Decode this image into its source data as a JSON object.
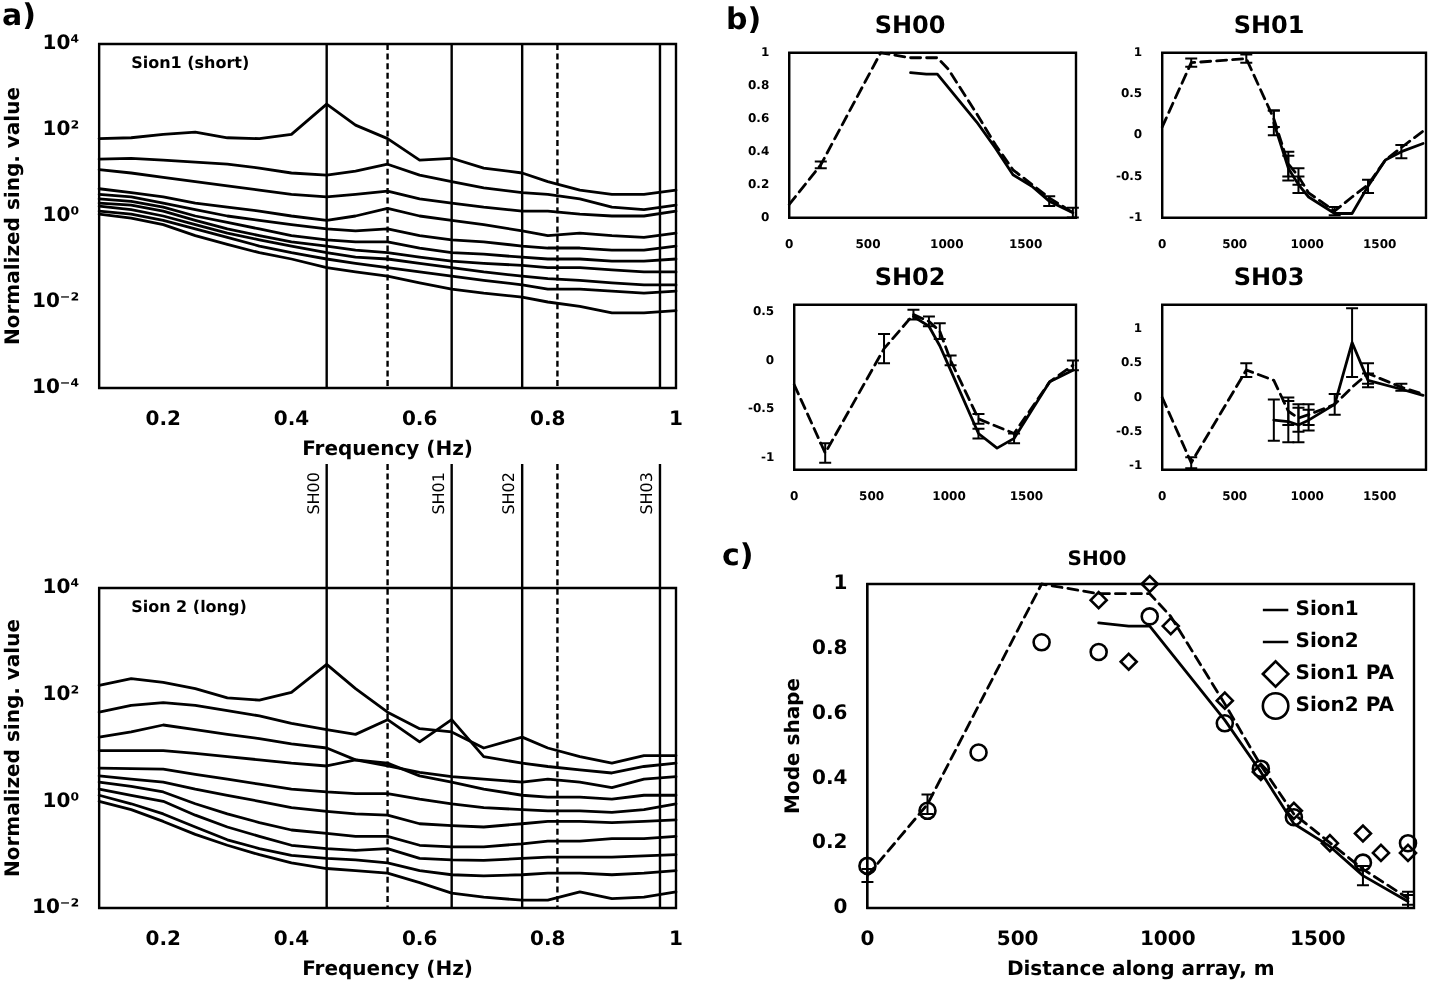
{
  "chart_data": [
    {
      "type": "line",
      "annotations": [
        "a)",
        "Sion1 (short)"
      ],
      "xlabel": "Frequency (Hz)",
      "ylabel": "Normalized sing. value",
      "log": true,
      "grid": false,
      "legend": false,
      "x": [
        0.1,
        0.15,
        0.2,
        0.25,
        0.3,
        0.35,
        0.4,
        0.455,
        0.5,
        0.55,
        0.6,
        0.65,
        0.7,
        0.76,
        0.8,
        0.85,
        0.9,
        0.95,
        1
      ],
      "xlim": [
        0.1,
        1
      ],
      "xticks": [
        0.2,
        0.4,
        0.6,
        0.8,
        1
      ],
      "ylim": [
        0.0001,
        10000
      ],
      "yticks": [
        {
          "value": 0.0001,
          "label": "10⁻⁴"
        },
        {
          "value": 0.01,
          "label": "10⁻²"
        },
        {
          "value": 1,
          "label": "10⁰"
        },
        {
          "value": 100,
          "label": "10²"
        },
        {
          "value": 10000,
          "label": "10⁴"
        }
      ],
      "ref_lines": [
        {
          "axis": "x",
          "value": 0.455,
          "line_style": "solid"
        },
        {
          "axis": "x",
          "value": 0.55,
          "line_style": "dashed"
        },
        {
          "axis": "x",
          "value": 0.65,
          "line_style": "solid"
        },
        {
          "axis": "x",
          "value": 0.76,
          "line_style": "solid"
        },
        {
          "axis": "x",
          "value": 0.815,
          "line_style": "dashed"
        },
        {
          "axis": "x",
          "value": 0.975,
          "line_style": "solid"
        }
      ],
      "series": [
        {
          "color": "#000000",
          "values": [
            63,
            66,
            79,
            89,
            66,
            63,
            79,
            400,
            130,
            63,
            20,
            22,
            13,
            10,
            6.3,
            4,
            3.2,
            3.2,
            4
          ]
        },
        {
          "color": "#000000",
          "values": [
            21,
            22,
            20,
            18,
            16,
            13,
            10,
            8.9,
            11,
            16,
            8.9,
            6.3,
            4.5,
            3.5,
            3.2,
            2.5,
            1.6,
            1.4,
            1.8
          ]
        },
        {
          "color": "#000000",
          "values": [
            12,
            10,
            7.9,
            6.3,
            5,
            4,
            3.2,
            2.8,
            3.2,
            3.8,
            2.5,
            2,
            1.6,
            1.3,
            1.3,
            1.1,
            1,
            1,
            1.3
          ]
        },
        {
          "color": "#000000",
          "values": [
            4.3,
            3.5,
            2.8,
            2,
            1.6,
            1.3,
            1,
            0.79,
            1,
            1.5,
            1,
            0.79,
            0.63,
            0.45,
            0.35,
            0.4,
            0.35,
            0.32,
            0.4
          ]
        },
        {
          "color": "#000000",
          "values": [
            3.2,
            2.8,
            2,
            1.4,
            1,
            0.79,
            0.63,
            0.5,
            0.45,
            0.5,
            0.35,
            0.28,
            0.25,
            0.2,
            0.18,
            0.18,
            0.16,
            0.16,
            0.2
          ]
        },
        {
          "color": "#000000",
          "values": [
            2.5,
            2.2,
            1.6,
            1,
            0.71,
            0.5,
            0.35,
            0.28,
            0.25,
            0.25,
            0.18,
            0.14,
            0.13,
            0.11,
            0.1,
            0.1,
            0.089,
            0.089,
            0.1
          ]
        },
        {
          "color": "#000000",
          "values": [
            2,
            1.8,
            1.3,
            0.79,
            0.5,
            0.35,
            0.25,
            0.2,
            0.16,
            0.14,
            0.11,
            0.089,
            0.079,
            0.071,
            0.063,
            0.063,
            0.056,
            0.05,
            0.05
          ]
        },
        {
          "color": "#000000",
          "values": [
            1.7,
            1.4,
            1,
            0.63,
            0.4,
            0.28,
            0.2,
            0.14,
            0.11,
            0.1,
            0.079,
            0.063,
            0.05,
            0.04,
            0.035,
            0.032,
            0.028,
            0.025,
            0.025
          ]
        },
        {
          "color": "#000000",
          "values": [
            1.3,
            1.1,
            0.79,
            0.5,
            0.32,
            0.2,
            0.14,
            0.1,
            0.079,
            0.063,
            0.05,
            0.04,
            0.032,
            0.025,
            0.02,
            0.02,
            0.018,
            0.016,
            0.018
          ]
        },
        {
          "color": "#000000",
          "values": [
            1.1,
            0.89,
            0.63,
            0.35,
            0.22,
            0.14,
            0.1,
            0.063,
            0.05,
            0.04,
            0.028,
            0.02,
            0.016,
            0.013,
            0.01,
            0.0079,
            0.0056,
            0.0056,
            0.0063
          ]
        }
      ]
    },
    {
      "type": "line",
      "annotations": [
        "Sion 2 (long)"
      ],
      "xlabel": "Frequency (Hz)",
      "ylabel": "Normalized sing. value",
      "log": true,
      "grid": false,
      "legend": false,
      "x": [
        0.1,
        0.15,
        0.2,
        0.25,
        0.3,
        0.35,
        0.4,
        0.455,
        0.5,
        0.55,
        0.6,
        0.65,
        0.7,
        0.76,
        0.8,
        0.85,
        0.9,
        0.95,
        1
      ],
      "xlim": [
        0.1,
        1
      ],
      "xticks": [
        0.2,
        0.4,
        0.6,
        0.8,
        1
      ],
      "ylim": [
        0.01,
        10000
      ],
      "yticks": [
        {
          "value": 0.01,
          "label": "10⁻²"
        },
        {
          "value": 1,
          "label": "10⁰"
        },
        {
          "value": 100,
          "label": "10²"
        },
        {
          "value": 10000,
          "label": "10⁴"
        }
      ],
      "ref_lines": [
        {
          "axis": "x",
          "value": 0.455,
          "label": "SH00",
          "line_style": "solid"
        },
        {
          "axis": "x",
          "value": 0.55,
          "line_style": "dashed"
        },
        {
          "axis": "x",
          "value": 0.65,
          "label": "SH01",
          "line_style": "solid"
        },
        {
          "axis": "x",
          "value": 0.76,
          "label": "SH02",
          "line_style": "solid"
        },
        {
          "axis": "x",
          "value": 0.815,
          "line_style": "dashed"
        },
        {
          "axis": "x",
          "value": 0.975,
          "label": "SH03",
          "line_style": "solid"
        }
      ],
      "series": [
        {
          "color": "#000000",
          "values": [
            150,
            200,
            170,
            130,
            87,
            79,
            110,
            370,
            130,
            47,
            23,
            20,
            10,
            16,
            10,
            6.9,
            5.2,
            7.2,
            7.2
          ]
        },
        {
          "color": "#000000",
          "values": [
            47,
            63,
            71,
            63,
            50,
            40,
            29,
            22,
            18,
            34,
            13,
            34,
            6.9,
            5.2,
            4.5,
            3.9,
            3.4,
            4.5,
            5.2
          ]
        },
        {
          "color": "#000000",
          "values": [
            16,
            20,
            27,
            22,
            18,
            15,
            12,
            10,
            6,
            4.6,
            3.5,
            2.9,
            2.6,
            2.3,
            2.6,
            2.3,
            1.8,
            2.6,
            2.9
          ]
        },
        {
          "color": "#000000",
          "values": [
            8.9,
            8.9,
            8.9,
            7.9,
            6.9,
            6,
            5.2,
            4.6,
            6,
            5.2,
            3,
            2.3,
            1.7,
            1.3,
            1.2,
            1.2,
            1.1,
            1.3,
            1.3
          ]
        },
        {
          "color": "#000000",
          "values": [
            4.2,
            4.1,
            4,
            3.2,
            2.6,
            2.1,
            1.7,
            1.5,
            1.4,
            1.4,
            1.1,
            0.9,
            0.76,
            0.7,
            0.66,
            0.66,
            0.62,
            0.7,
            0.9
          ]
        },
        {
          "color": "#000000",
          "values": [
            3,
            2.6,
            2.3,
            1.7,
            1.3,
            1,
            0.76,
            0.65,
            0.58,
            0.55,
            0.38,
            0.35,
            0.33,
            0.38,
            0.42,
            0.42,
            0.4,
            0.42,
            0.45
          ]
        },
        {
          "color": "#000000",
          "values": [
            2.3,
            1.9,
            1.5,
            0.9,
            0.58,
            0.4,
            0.29,
            0.25,
            0.22,
            0.22,
            0.15,
            0.14,
            0.14,
            0.16,
            0.18,
            0.18,
            0.2,
            0.2,
            0.22
          ]
        },
        {
          "color": "#000000",
          "values": [
            1.7,
            1.3,
            1,
            0.55,
            0.33,
            0.22,
            0.15,
            0.13,
            0.12,
            0.13,
            0.085,
            0.08,
            0.078,
            0.085,
            0.09,
            0.09,
            0.09,
            0.095,
            0.1
          ]
        },
        {
          "color": "#000000",
          "values": [
            1.3,
            0.9,
            0.58,
            0.33,
            0.19,
            0.13,
            0.097,
            0.085,
            0.08,
            0.07,
            0.05,
            0.042,
            0.04,
            0.042,
            0.045,
            0.045,
            0.042,
            0.045,
            0.05
          ]
        },
        {
          "color": "#000000",
          "values": [
            1,
            0.7,
            0.42,
            0.24,
            0.15,
            0.1,
            0.07,
            0.055,
            0.05,
            0.045,
            0.03,
            0.019,
            0.016,
            0.014,
            0.014,
            0.02,
            0.015,
            0.016,
            0.02
          ]
        }
      ]
    },
    {
      "type": "line",
      "title": "SH00",
      "annotations": [
        "b)"
      ],
      "grid": false,
      "legend": false,
      "xlim": [
        0,
        1820
      ],
      "xticks": [
        0,
        500,
        1000,
        1500
      ],
      "ylim": [
        0,
        1
      ],
      "yticks": [
        0,
        0.2,
        0.4,
        0.6,
        0.8,
        1
      ],
      "series": [
        {
          "color": "#000000",
          "line_style": "solid",
          "x": [
            770,
            870,
            940,
            1190,
            1310,
            1420,
            1540,
            1650,
            1800
          ],
          "values": [
            0.88,
            0.87,
            0.87,
            0.58,
            0.42,
            0.26,
            0.19,
            0.1,
            0.03
          ],
          "errors": [
            null,
            null,
            null,
            null,
            null,
            null,
            null,
            0.03,
            0.03
          ]
        },
        {
          "color": "#000000",
          "line_style": "dashed",
          "x": [
            0,
            200,
            580,
            770,
            940,
            1010,
            1190,
            1310,
            1420,
            1650,
            1800
          ],
          "values": [
            0.08,
            0.32,
            1,
            0.97,
            0.97,
            0.9,
            0.63,
            0.44,
            0.29,
            0.12,
            0.03
          ],
          "errors": [
            null,
            0.02,
            null,
            null,
            null,
            null,
            null,
            null,
            null,
            null,
            null
          ]
        }
      ]
    },
    {
      "type": "line",
      "title": "SH01",
      "grid": false,
      "legend": false,
      "xlim": [
        0,
        1820
      ],
      "xticks": [
        0,
        500,
        1000,
        1500
      ],
      "ylim": [
        -1,
        1
      ],
      "yticks": [
        -1,
        -0.5,
        0,
        0.5,
        1
      ],
      "series": [
        {
          "color": "#000000",
          "line_style": "solid",
          "x": [
            770,
            870,
            940,
            1010,
            1190,
            1310,
            1420,
            1540,
            1650,
            1800
          ],
          "values": [
            0.15,
            -0.4,
            -0.6,
            -0.75,
            -0.95,
            -0.95,
            -0.62,
            -0.3,
            -0.2,
            -0.1
          ],
          "errors": [
            0.15,
            0.15,
            0.1,
            null,
            null,
            null,
            0.08,
            null,
            0.08,
            null
          ]
        },
        {
          "color": "#000000",
          "line_style": "dashed",
          "x": [
            0,
            200,
            580,
            770,
            870,
            940,
            1010,
            1190,
            1310,
            1420,
            1540,
            1650,
            1800
          ],
          "values": [
            0.1,
            0.88,
            0.93,
            0.2,
            -0.35,
            -0.5,
            -0.7,
            -0.92,
            -0.75,
            -0.6,
            -0.3,
            -0.15,
            0.05
          ],
          "errors": [
            null,
            0.05,
            0.05,
            0.1,
            0.15,
            0.1,
            null,
            0.05,
            null,
            null,
            null,
            null,
            null
          ]
        }
      ]
    },
    {
      "type": "line",
      "title": "SH02",
      "grid": false,
      "legend": false,
      "xlim": [
        0,
        1820
      ],
      "xticks": [
        0,
        500,
        1000,
        1500
      ],
      "ylim": [
        -1.12,
        0.57
      ],
      "yticks": [
        -1,
        -0.5,
        0,
        0.5
      ],
      "series": [
        {
          "color": "#000000",
          "line_style": "solid",
          "x": [
            770,
            870,
            940,
            1010,
            1190,
            1310,
            1420,
            1650,
            1800
          ],
          "values": [
            0.45,
            0.35,
            0.15,
            -0.1,
            -0.75,
            -0.9,
            -0.8,
            -0.22,
            -0.1
          ],
          "errors": [
            null,
            null,
            null,
            null,
            0.05,
            null,
            0.05,
            null,
            null
          ]
        },
        {
          "color": "#000000",
          "line_style": "dashed",
          "x": [
            0,
            200,
            580,
            770,
            870,
            940,
            1010,
            1190,
            1420,
            1650,
            1800
          ],
          "values": [
            -0.25,
            -0.95,
            0.12,
            0.47,
            0.4,
            0.3,
            0.0,
            -0.6,
            -0.75,
            -0.22,
            -0.05
          ],
          "errors": [
            null,
            0.1,
            0.15,
            0.05,
            0.05,
            0.08,
            0.05,
            0.05,
            null,
            null,
            0.05
          ]
        }
      ]
    },
    {
      "type": "line",
      "title": "SH03",
      "grid": false,
      "legend": false,
      "xlim": [
        0,
        1820
      ],
      "xticks": [
        0,
        500,
        1000,
        1500
      ],
      "ylim": [
        -1.05,
        1.35
      ],
      "yticks": [
        -1,
        -0.5,
        0,
        0.5,
        1
      ],
      "series": [
        {
          "color": "#000000",
          "line_style": "solid",
          "x": [
            770,
            870,
            940,
            1010,
            1190,
            1310,
            1420,
            1650,
            1800
          ],
          "values": [
            -0.33,
            -0.35,
            -0.4,
            -0.33,
            -0.1,
            0.8,
            0.25,
            0.12,
            0.03
          ],
          "errors": [
            0.3,
            0.3,
            0.25,
            0.15,
            0.15,
            0.5,
            0.1,
            null,
            null
          ]
        },
        {
          "color": "#000000",
          "line_style": "dashed",
          "x": [
            0,
            200,
            580,
            770,
            870,
            940,
            1010,
            1190,
            1310,
            1420,
            1650,
            1800
          ],
          "values": [
            0,
            -0.95,
            0.4,
            0.25,
            -0.2,
            -0.3,
            -0.25,
            -0.1,
            0.15,
            0.35,
            0.15,
            0.05
          ],
          "errors": [
            null,
            0.08,
            0.1,
            null,
            0.2,
            0.2,
            0.15,
            null,
            null,
            0.15,
            0.05,
            null
          ]
        }
      ]
    },
    {
      "type": "line",
      "title": "SH00",
      "annotations": [
        "c)"
      ],
      "xlabel": "Distance along array, m",
      "ylabel": "Mode shape",
      "grid": false,
      "legend": "top right",
      "xlim": [
        0,
        1820
      ],
      "xticks": [
        0,
        500,
        1000,
        1500
      ],
      "ylim": [
        0,
        1
      ],
      "yticks": [
        0,
        0.2,
        0.4,
        0.6,
        0.8,
        1
      ],
      "series": [
        {
          "name": "Sion1",
          "color": "#000000",
          "line_style": "solid",
          "x": [
            770,
            870,
            940,
            1190,
            1310,
            1420,
            1540,
            1650,
            1800
          ],
          "values": [
            0.88,
            0.87,
            0.87,
            0.58,
            0.42,
            0.26,
            0.19,
            0.1,
            0.02
          ],
          "errors": [
            null,
            null,
            null,
            null,
            null,
            null,
            null,
            0.03,
            0.02
          ]
        },
        {
          "name": "Sion2",
          "color": "#000000",
          "line_style": "dashed",
          "x": [
            0,
            200,
            580,
            770,
            940,
            1010,
            1190,
            1310,
            1420,
            1650,
            1800
          ],
          "values": [
            0.1,
            0.32,
            1,
            0.97,
            0.97,
            0.9,
            0.63,
            0.44,
            0.29,
            0.12,
            0.03
          ],
          "errors": [
            0.02,
            0.03,
            null,
            null,
            null,
            null,
            null,
            null,
            null,
            null,
            0.02
          ]
        },
        {
          "name": "Sion1 PA",
          "type": "scatter",
          "marker": "diamond",
          "color": "#000000",
          "x": [
            770,
            870,
            940,
            1010,
            1190,
            1310,
            1420,
            1540,
            1650,
            1710,
            1800
          ],
          "values": [
            0.95,
            0.76,
            1,
            0.87,
            0.64,
            0.42,
            0.3,
            0.2,
            0.23,
            0.17,
            0.17
          ]
        },
        {
          "name": "Sion2 PA",
          "type": "scatter",
          "marker": "circle",
          "color": "#000000",
          "x": [
            0,
            200,
            370,
            580,
            770,
            940,
            1190,
            1310,
            1420,
            1650,
            1800
          ],
          "values": [
            0.13,
            0.3,
            0.48,
            0.82,
            0.79,
            0.9,
            0.57,
            0.43,
            0.28,
            0.14,
            0.2
          ]
        }
      ]
    }
  ]
}
